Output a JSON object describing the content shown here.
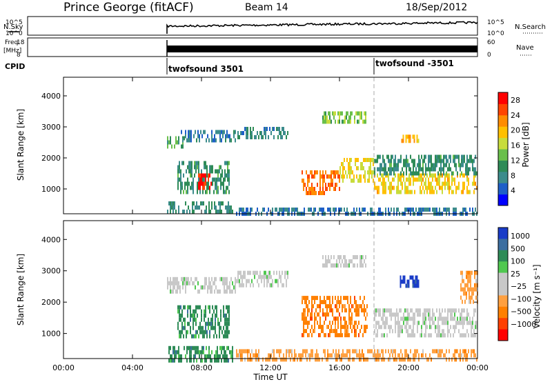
{
  "header": {
    "station": "Prince George (fitACF)",
    "beam": "Beam 14",
    "date": "18/Sep/2012"
  },
  "labels": {
    "nsky": "N.Sky",
    "nsearch": "N.Search",
    "freq_line1": "Freq.",
    "freq_line2": "[MHz]",
    "nave": "Nave",
    "cpid": "CPID",
    "cpid_1": "twofsound 3501",
    "cpid_2": "twofsound -3501"
  },
  "noise_axis": {
    "top": "10^5",
    "bottom": "10^0"
  },
  "freq_axis": {
    "left_ticks": [
      "18",
      "8"
    ],
    "right_ticks": [
      "60",
      "0"
    ]
  },
  "colors": {
    "power_scale": [
      "#0000ff",
      "#1e5fc8",
      "#3c8c8c",
      "#2e8b57",
      "#6abf4b",
      "#c8dc3c",
      "#ffc000",
      "#ff8c00",
      "#ff4500",
      "#ff0000"
    ],
    "velocity_scale": [
      "#1a3cc8",
      "#3c6ea0",
      "#2e8b57",
      "#50c850",
      "#c8c8c8",
      "#c8c8c8",
      "#ffa040",
      "#ff8000",
      "#ff4000",
      "#ff0000"
    ],
    "grid_line": "#aaaaaa"
  },
  "chart_data": [
    {
      "type": "heatmap",
      "panel": "power",
      "ylabel": "Slant Range [km]",
      "yticks": [
        "1000",
        "2000",
        "3000",
        "4000"
      ],
      "ylim": [
        200,
        4600
      ],
      "colorbar_label": "Power [dB]",
      "colorbar_ticks": [
        "4",
        "8",
        "12",
        "16",
        "20",
        "24",
        "28"
      ],
      "clim": [
        0,
        30
      ],
      "regions": [
        {
          "x": [
            6.0,
            9.8
          ],
          "y": [
            150,
            600
          ],
          "value": 8
        },
        {
          "x": [
            6.0,
            7.0
          ],
          "y": [
            2300,
            2700
          ],
          "value": 11
        },
        {
          "x": [
            6.8,
            10.0
          ],
          "y": [
            2500,
            2900
          ],
          "value": 6
        },
        {
          "x": [
            6.6,
            9.6
          ],
          "y": [
            900,
            1900
          ],
          "value": 9
        },
        {
          "x": [
            7.8,
            8.6
          ],
          "y": [
            1000,
            1500
          ],
          "value": 29
        },
        {
          "x": [
            10.0,
            13.0
          ],
          "y": [
            2600,
            3000
          ],
          "value": 7
        },
        {
          "x": [
            13.8,
            16.0
          ],
          "y": [
            900,
            1600
          ],
          "value": 25
        },
        {
          "x": [
            16.0,
            18.0
          ],
          "y": [
            1300,
            2000
          ],
          "value": 18
        },
        {
          "x": [
            18.0,
            24.0
          ],
          "y": [
            900,
            1500
          ],
          "value": 19
        },
        {
          "x": [
            18.0,
            24.0
          ],
          "y": [
            1500,
            2100
          ],
          "value": 9
        },
        {
          "x": [
            19.5,
            20.6
          ],
          "y": [
            2550,
            2750
          ],
          "value": 21
        },
        {
          "x": [
            15.0,
            17.5
          ],
          "y": [
            3200,
            3500
          ],
          "value": 14
        },
        {
          "x": [
            10.0,
            24.0
          ],
          "y": [
            150,
            400
          ],
          "value": 5
        }
      ]
    },
    {
      "type": "heatmap",
      "panel": "velocity",
      "ylabel": "Slant Range [km]",
      "yticks": [
        "1000",
        "2000",
        "3000",
        "4000"
      ],
      "ylim": [
        200,
        4600
      ],
      "colorbar_label": "Velocity [m s⁻¹]",
      "colorbar_ticks": [
        "1000",
        "500",
        "100",
        "25",
        "−25",
        "−100",
        "−500",
        "−1000"
      ],
      "regions": [
        {
          "x": [
            6.0,
            9.8
          ],
          "y": [
            150,
            600
          ],
          "value": 120
        },
        {
          "x": [
            6.0,
            10.0
          ],
          "y": [
            2400,
            2800
          ],
          "value": 0
        },
        {
          "x": [
            6.6,
            9.6
          ],
          "y": [
            900,
            1900
          ],
          "value": 300
        },
        {
          "x": [
            10.0,
            13.0
          ],
          "y": [
            2600,
            3000
          ],
          "value": 0
        },
        {
          "x": [
            13.8,
            17.6
          ],
          "y": [
            900,
            2200
          ],
          "value": -300
        },
        {
          "x": [
            18.0,
            24.0
          ],
          "y": [
            900,
            1800
          ],
          "value": 0
        },
        {
          "x": [
            19.5,
            20.6
          ],
          "y": [
            2550,
            2850
          ],
          "value": 900
        },
        {
          "x": [
            15.0,
            17.5
          ],
          "y": [
            3200,
            3500
          ],
          "value": 0
        },
        {
          "x": [
            10.0,
            24.0
          ],
          "y": [
            150,
            500
          ],
          "value": -120
        },
        {
          "x": [
            23.0,
            24.0
          ],
          "y": [
            2000,
            3000
          ],
          "value": -200
        }
      ]
    }
  ],
  "time_axis": {
    "xlabel": "Time UT",
    "xlim": [
      0,
      24
    ],
    "ticks": [
      "00:00",
      "04:00",
      "08:00",
      "12:00",
      "16:00",
      "20:00",
      "00:00"
    ]
  }
}
